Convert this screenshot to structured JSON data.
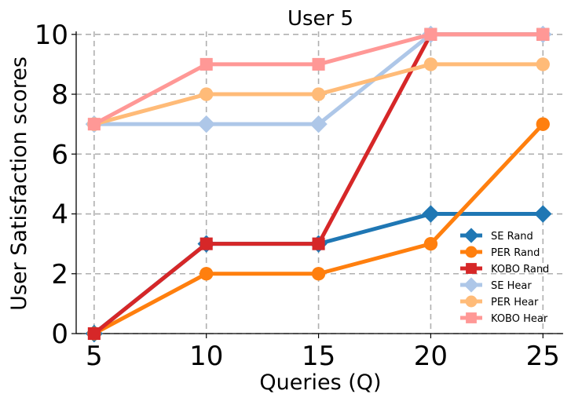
{
  "chart_data": {
    "type": "line",
    "title": "User 5",
    "xlabel": "Queries (Q)",
    "ylabel": "User Satisfaction scores",
    "x": [
      5,
      10,
      15,
      20,
      25
    ],
    "xlim": [
      4.2,
      25.9
    ],
    "ylim": [
      0,
      10.1
    ],
    "xticks": [
      5,
      10,
      15,
      20,
      25
    ],
    "yticks": [
      0,
      2,
      4,
      6,
      8,
      10
    ],
    "grid": true,
    "legend_position": "lower-right",
    "series": [
      {
        "name": "SE Rand",
        "values": [
          0,
          3,
          3,
          4,
          4
        ],
        "color": "#1f77b4",
        "marker": "diamond"
      },
      {
        "name": "PER Rand",
        "values": [
          0,
          2,
          2,
          3,
          7
        ],
        "color": "#ff7f0e",
        "marker": "circle"
      },
      {
        "name": "KOBO Rand",
        "values": [
          0,
          3,
          3,
          10,
          10
        ],
        "color": "#d62728",
        "marker": "square"
      },
      {
        "name": "SE Hear",
        "values": [
          7,
          7,
          7,
          10,
          10
        ],
        "color": "#aec7e8",
        "marker": "diamond"
      },
      {
        "name": "PER Hear",
        "values": [
          7,
          8,
          8,
          9,
          9
        ],
        "color": "#ffbb78",
        "marker": "circle"
      },
      {
        "name": "KOBO Hear",
        "values": [
          7,
          9,
          9,
          10,
          10
        ],
        "color": "#ff9896",
        "marker": "square"
      }
    ]
  }
}
